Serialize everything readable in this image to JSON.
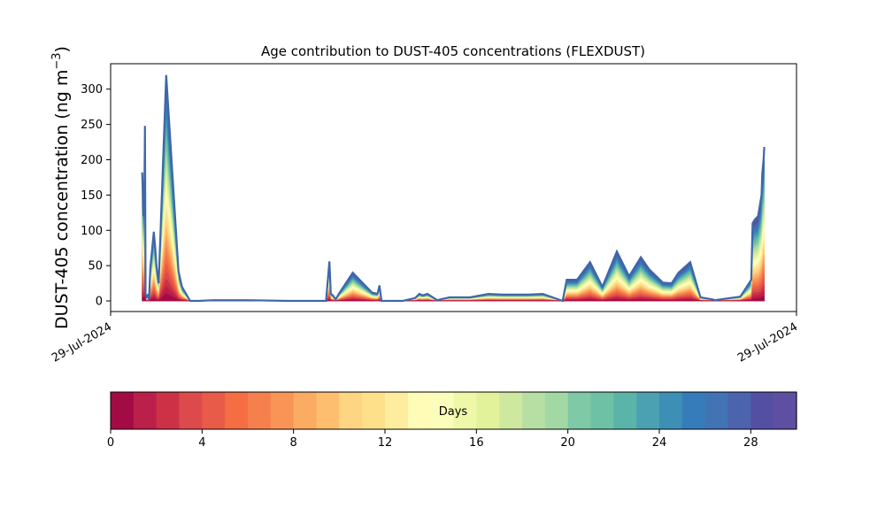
{
  "chart_data": {
    "type": "area",
    "title": "Age contribution to DUST-405 concentrations (FLEXDUST)",
    "ylabel_main": "DUST-405 concentration (ng m",
    "ylabel_sup": "−3",
    "ylabel_close": ")",
    "xlabel": "",
    "ylim": [
      -15,
      336
    ],
    "yticks": [
      0,
      50,
      100,
      150,
      200,
      250,
      300
    ],
    "xlim": [
      0,
      1
    ],
    "xtick_labels": [
      "29-Jul-2024",
      "29-Jul-2024"
    ],
    "grid": false,
    "total_line_color": "#3f67a8",
    "series_count": 30,
    "total": {
      "x": [
        0.046,
        0.048,
        0.049,
        0.05,
        0.051,
        0.052,
        0.054,
        0.056,
        0.058,
        0.06,
        0.063,
        0.065,
        0.067,
        0.07,
        0.081,
        0.099,
        0.104,
        0.116,
        0.128,
        0.15,
        0.2,
        0.26,
        0.314,
        0.319,
        0.321,
        0.324,
        0.328,
        0.334,
        0.353,
        0.368,
        0.381,
        0.389,
        0.392,
        0.395,
        0.426,
        0.444,
        0.45,
        0.455,
        0.462,
        0.476,
        0.494,
        0.524,
        0.551,
        0.571,
        0.609,
        0.63,
        0.659,
        0.665,
        0.68,
        0.699,
        0.717,
        0.738,
        0.756,
        0.773,
        0.785,
        0.805,
        0.818,
        0.828,
        0.845,
        0.86,
        0.878,
        0.881,
        0.918,
        0.934,
        0.936,
        0.939,
        0.944,
        0.949,
        0.95,
        0.952,
        0.953
      ],
      "y": [
        182,
        120,
        125,
        248,
        10,
        5,
        8,
        2,
        48,
        68,
        98,
        75,
        48,
        25,
        320,
        42,
        20,
        0,
        0,
        1,
        1,
        0,
        0,
        56,
        10,
        8,
        2,
        12,
        40,
        25,
        12,
        10,
        22,
        0,
        0,
        4,
        10,
        8,
        10,
        1,
        5,
        5,
        10,
        9,
        9,
        10,
        0,
        30,
        30,
        55,
        20,
        70,
        35,
        62,
        45,
        26,
        25,
        40,
        55,
        5,
        2,
        1,
        6,
        30,
        110,
        115,
        120,
        150,
        180,
        200,
        218
      ]
    },
    "colorbar": {
      "label": "Days",
      "min": 0,
      "max": 30,
      "ticks": [
        0,
        4,
        8,
        12,
        16,
        20,
        24,
        28
      ],
      "colors": [
        "#a30b45",
        "#ba2049",
        "#cd3146",
        "#dd4a4c",
        "#e85b48",
        "#f46d43",
        "#f6804d",
        "#f99457",
        "#fcab63",
        "#fdbe70",
        "#fed683",
        "#fee08b",
        "#feec9f",
        "#fffcb8",
        "#fbfdba",
        "#eef8a8",
        "#e2f29a",
        "#cfe89f",
        "#b8dfa3",
        "#a2d8a4",
        "#7fc9a6",
        "#6fc1a5",
        "#5bb4a8",
        "#4ba1b1",
        "#3d8fb6",
        "#367cba",
        "#4273b3",
        "#4c63ad",
        "#5350a4",
        "#5e4fa2"
      ]
    }
  }
}
